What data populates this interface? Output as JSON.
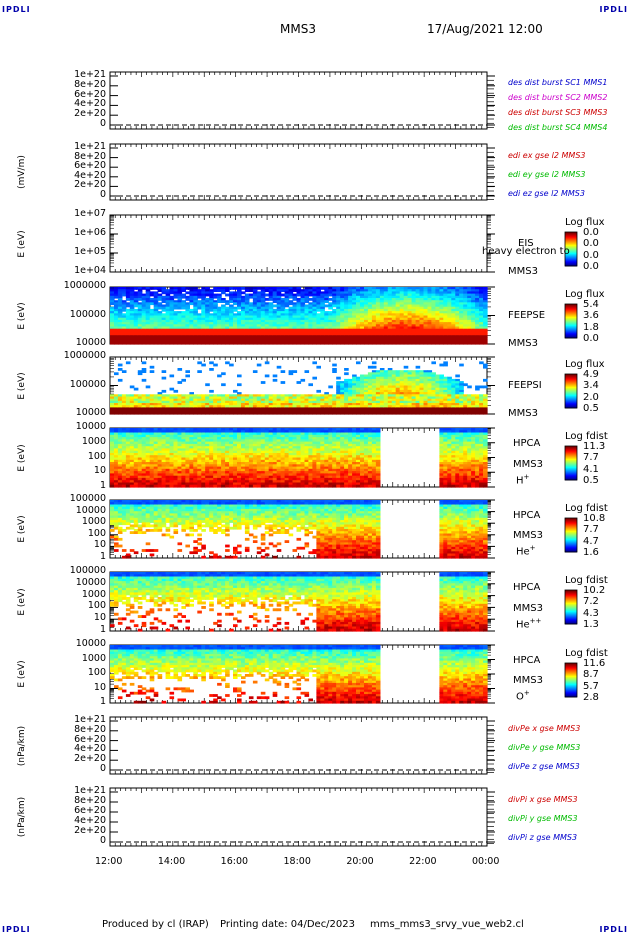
{
  "header": {
    "corner_label": "IPDLI",
    "mission": "MMS3",
    "datetime": "17/Aug/2021 12:00"
  },
  "footer": {
    "produced_by": "Produced by cl (IRAP)",
    "printing_date": "Printing date: 04/Dec/2023",
    "file": "mms_mms3_srvy_vue_web2.cl"
  },
  "colors": {
    "red": "#cc0000",
    "magenta": "#cc00cc",
    "green": "#00bb00",
    "blue": "#0000cc"
  },
  "chart_data": {
    "type": "heatmap",
    "x_ticks": [
      "12:00",
      "14:00",
      "16:00",
      "18:00",
      "20:00",
      "22:00",
      "00:00"
    ],
    "x_range": [
      "12:00",
      "00:00"
    ],
    "hpca_data_gap": [
      "20:40",
      "22:30"
    ],
    "panels": [
      {
        "id": "dist",
        "ylabel": "",
        "yticks": [
          "1e+21",
          "8e+20",
          "6e+20",
          "4e+20",
          "2e+20",
          "0"
        ],
        "legend": [
          {
            "text": "des dist burst SC1 MMS1",
            "color": "blue"
          },
          {
            "text": "des dist burst SC2 MMS2",
            "color": "magenta"
          },
          {
            "text": "des dist burst SC3 MMS3",
            "color": "red"
          },
          {
            "text": "des dist burst SC4 MMS4",
            "color": "green"
          }
        ]
      },
      {
        "id": "edi",
        "ylabel": "(mV/m)",
        "yticks": [
          "1e+21",
          "8e+20",
          "6e+20",
          "4e+20",
          "2e+20",
          "0"
        ],
        "legend": [
          {
            "text": "edi ex gse l2 MMS3",
            "color": "red"
          },
          {
            "text": "edi ey gse l2 MMS3",
            "color": "green"
          },
          {
            "text": "edi ez gse l2 MMS3",
            "color": "blue"
          }
        ]
      },
      {
        "id": "eis",
        "ylabel": "E (eV)",
        "yticks": [
          "1e+07",
          "1e+06",
          "1e+05",
          "1e+04"
        ],
        "side": [
          "EIS",
          "MMS3"
        ],
        "overlay": "heavy electron to",
        "cbar": {
          "title": "Log flux",
          "values": [
            "0.0",
            "0.0",
            "0.0",
            "0.0"
          ]
        }
      },
      {
        "id": "feepse",
        "ylabel": "E (eV)",
        "yticks": [
          "1000000",
          "100000",
          "10000"
        ],
        "side": [
          "FEEPSE",
          "MMS3"
        ],
        "cbar": {
          "title": "Log flux",
          "values": [
            "5.4",
            "3.6",
            "1.8",
            "0.0"
          ]
        }
      },
      {
        "id": "feepsi",
        "ylabel": "E (eV)",
        "yticks": [
          "1000000",
          "100000",
          "10000"
        ],
        "side": [
          "FEEPSI",
          "MMS3"
        ],
        "cbar": {
          "title": "Log flux",
          "values": [
            "4.9",
            "3.4",
            "2.0",
            "0.5"
          ]
        }
      },
      {
        "id": "hpca_h",
        "ylabel": "E (eV)",
        "yticks": [
          "10000",
          "1000",
          "100",
          "10",
          "1"
        ],
        "side": [
          "HPCA",
          "MMS3"
        ],
        "species": "H",
        "species_sup": "+",
        "cbar": {
          "title": "Log fdist",
          "values": [
            "11.3",
            "7.7",
            "4.1",
            "0.5"
          ]
        }
      },
      {
        "id": "hpca_he",
        "ylabel": "E (eV)",
        "yticks": [
          "100000",
          "10000",
          "1000",
          "100",
          "10",
          "1"
        ],
        "side": [
          "HPCA",
          "MMS3"
        ],
        "species": "He",
        "species_sup": "+",
        "cbar": {
          "title": "Log fdist",
          "values": [
            "10.8",
            "7.7",
            "4.7",
            "1.6"
          ]
        }
      },
      {
        "id": "hpca_hepp",
        "ylabel": "E (eV)",
        "yticks": [
          "100000",
          "10000",
          "1000",
          "100",
          "10",
          "1"
        ],
        "side": [
          "HPCA",
          "MMS3"
        ],
        "species": "He",
        "species_sup": "++",
        "cbar": {
          "title": "Log fdist",
          "values": [
            "10.2",
            "7.2",
            "4.3",
            "1.3"
          ]
        }
      },
      {
        "id": "hpca_o",
        "ylabel": "E (eV)",
        "yticks": [
          "10000",
          "1000",
          "100",
          "10",
          "1"
        ],
        "side": [
          "HPCA",
          "MMS3"
        ],
        "species": "O",
        "species_sup": "+",
        "cbar": {
          "title": "Log fdist",
          "values": [
            "11.6",
            "8.7",
            "5.7",
            "2.8"
          ]
        }
      },
      {
        "id": "divpe",
        "ylabel": "(nPa/km)",
        "yticks": [
          "1e+21",
          "8e+20",
          "6e+20",
          "4e+20",
          "2e+20",
          "0"
        ],
        "legend": [
          {
            "text": "divPe x gse MMS3",
            "color": "red"
          },
          {
            "text": "divPe y gse MMS3",
            "color": "green"
          },
          {
            "text": "divPe z gse MMS3",
            "color": "blue"
          }
        ]
      },
      {
        "id": "divpi",
        "ylabel": "(nPa/km)",
        "yticks": [
          "1e+21",
          "8e+20",
          "6e+20",
          "4e+20",
          "2e+20",
          "0"
        ],
        "legend": [
          {
            "text": "divPi x gse MMS3",
            "color": "red"
          },
          {
            "text": "divPi y gse MMS3",
            "color": "green"
          },
          {
            "text": "divPi z gse MMS3",
            "color": "blue"
          }
        ]
      }
    ]
  }
}
